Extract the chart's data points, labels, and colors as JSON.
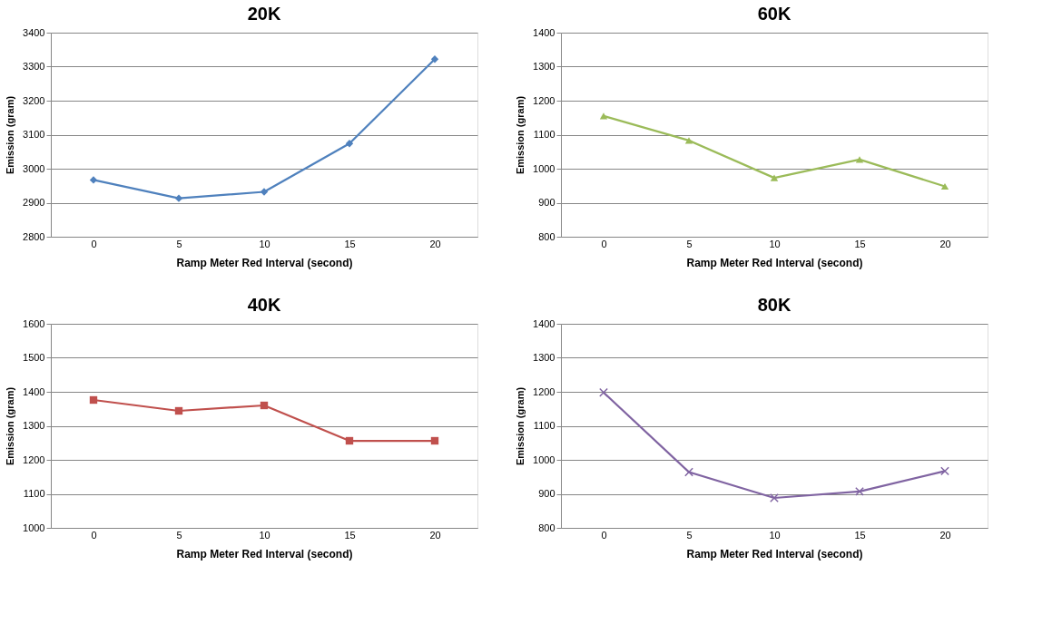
{
  "chart_data": [
    {
      "type": "line",
      "title": "20K",
      "xlabel": "Ramp Meter Red Interval (second)",
      "ylabel": "Emission (gram)",
      "categories": [
        "0",
        "5",
        "10",
        "15",
        "20"
      ],
      "series": [
        {
          "color": "#4f81bd",
          "values": [
            2967,
            2913,
            2932,
            3074,
            3322
          ]
        }
      ],
      "ylim": [
        2800,
        3400
      ],
      "yticks": [
        2800,
        2900,
        3000,
        3100,
        3200,
        3300,
        3400
      ],
      "grid": "y",
      "marker": "diamond",
      "line_style": "solid"
    },
    {
      "type": "line",
      "title": "60K",
      "xlabel": "Ramp Meter Red Interval (second)",
      "ylabel": "Emission (gram)",
      "categories": [
        "0",
        "5",
        "10",
        "15",
        "20"
      ],
      "series": [
        {
          "color": "#9bbb59",
          "values": [
            1155,
            1083,
            973,
            1027,
            948
          ]
        }
      ],
      "ylim": [
        800,
        1400
      ],
      "yticks": [
        800,
        900,
        1000,
        1100,
        1200,
        1300,
        1400
      ],
      "grid": "y",
      "marker": "triangle",
      "line_style": "solid"
    },
    {
      "type": "line",
      "title": "40K",
      "xlabel": "Ramp Meter Red Interval (second)",
      "ylabel": "Emission (gram)",
      "categories": [
        "0",
        "5",
        "10",
        "15",
        "20"
      ],
      "series": [
        {
          "color": "#c0504d",
          "values": [
            1376,
            1344,
            1360,
            1256,
            1256
          ]
        }
      ],
      "ylim": [
        1000,
        1600
      ],
      "yticks": [
        1000,
        1100,
        1200,
        1300,
        1400,
        1500,
        1600
      ],
      "grid": "y",
      "marker": "square",
      "line_style": "solid"
    },
    {
      "type": "line",
      "title": "80K",
      "xlabel": "Ramp Meter Red Interval (second)",
      "ylabel": "Emission (gram)",
      "categories": [
        "0",
        "5",
        "10",
        "15",
        "20"
      ],
      "series": [
        {
          "color": "#8064a2",
          "values": [
            1198,
            964,
            888,
            907,
            967
          ]
        }
      ],
      "ylim": [
        800,
        1400
      ],
      "yticks": [
        800,
        900,
        1000,
        1100,
        1200,
        1300,
        1400
      ],
      "grid": "y",
      "marker": "cross",
      "line_style": "solid"
    }
  ]
}
